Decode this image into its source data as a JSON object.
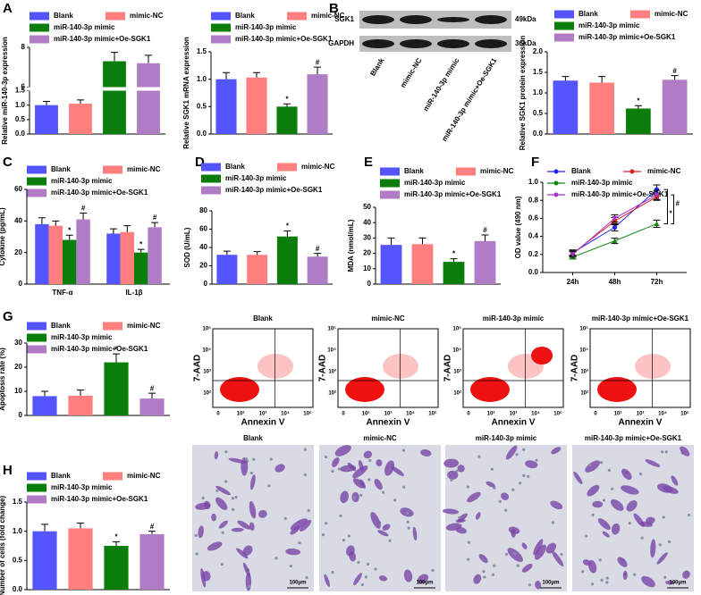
{
  "chart_data": [
    {
      "type": "bar",
      "panel": "A",
      "y_label": "Relative miR-140-3p expression",
      "ylim": [
        0,
        8
      ],
      "ybreak": [
        1.5,
        6
      ],
      "yticks": [
        {
          "value": 0,
          "label": "0.0"
        },
        0.5,
        {
          "value": 1,
          "label": "1.0"
        },
        1.5,
        6,
        8
      ],
      "series": [
        {
          "name": "Blank",
          "color": "#5555ff",
          "values": [
            1.0
          ],
          "errors": [
            0.13
          ]
        },
        {
          "name": "mimic-NC",
          "color": "#ff7f7f",
          "values": [
            1.05
          ],
          "errors": [
            0.13
          ]
        },
        {
          "name": "miR-140-3p mimic",
          "color": "#0b7d0b",
          "values": [
            7.3
          ],
          "errors": [
            0.45
          ]
        },
        {
          "name": "miR-140-3p mimic+Oe-SGK1",
          "color": "#b07cc6",
          "values": [
            7.2
          ],
          "errors": [
            0.4
          ]
        }
      ]
    },
    {
      "type": "bar",
      "y_label": "Relative SGK1 mRNA expression",
      "ylim": [
        0,
        1.5
      ],
      "yticks": [
        {
          "value": 0,
          "label": "0.0"
        },
        0.5,
        {
          "value": 1,
          "label": "1.0"
        },
        1.5
      ],
      "series": [
        {
          "name": "Blank",
          "color": "#5555ff",
          "values": [
            1.0
          ],
          "errors": [
            0.12
          ]
        },
        {
          "name": "mimic-NC",
          "color": "#ff7f7f",
          "values": [
            1.03
          ],
          "errors": [
            0.09
          ]
        },
        {
          "name": "miR-140-3p mimic",
          "color": "#0b7d0b",
          "values": [
            0.5
          ],
          "errors": [
            0.05
          ],
          "annotations": [
            "*"
          ]
        },
        {
          "name": "miR-140-3p mimic+Oe-SGK1",
          "color": "#b07cc6",
          "values": [
            1.09
          ],
          "errors": [
            0.13
          ],
          "annotations": [
            "#"
          ]
        }
      ]
    },
    {
      "type": "bar",
      "y_label": "Relative SGK1 protein expression",
      "ylim": [
        0,
        2
      ],
      "yticks": [
        {
          "value": 0,
          "label": "0.0"
        },
        0.5,
        {
          "value": 1,
          "label": "1.0"
        },
        1.5,
        {
          "value": 2,
          "label": "2.0"
        }
      ],
      "series": [
        {
          "name": "Blank",
          "color": "#5555ff",
          "values": [
            1.3
          ],
          "errors": [
            0.1
          ]
        },
        {
          "name": "mimic-NC",
          "color": "#ff7f7f",
          "values": [
            1.25
          ],
          "errors": [
            0.15
          ]
        },
        {
          "name": "miR-140-3p mimic",
          "color": "#0b7d0b",
          "values": [
            0.62
          ],
          "errors": [
            0.07
          ],
          "annotations": [
            "*"
          ]
        },
        {
          "name": "miR-140-3p mimic+Oe-SGK1",
          "color": "#b07cc6",
          "values": [
            1.32
          ],
          "errors": [
            0.1
          ],
          "annotations": [
            "#"
          ]
        }
      ]
    },
    {
      "type": "bar",
      "panel": "C",
      "y_label": "Cytokine (pg/mL)",
      "ylim": [
        0,
        60
      ],
      "yticks": [
        0,
        20,
        40,
        60
      ],
      "categories": [
        "TNF-α",
        "IL-1β"
      ],
      "series": [
        {
          "name": "Blank",
          "color": "#5555ff",
          "values": [
            38,
            32
          ],
          "errors": [
            4,
            3
          ]
        },
        {
          "name": "mimic-NC",
          "color": "#ff7f7f",
          "values": [
            37,
            33
          ],
          "errors": [
            3,
            4
          ]
        },
        {
          "name": "miR-140-3p mimic",
          "color": "#0b7d0b",
          "values": [
            28,
            20
          ],
          "errors": [
            3,
            2
          ],
          "annotations": [
            "*",
            "*"
          ]
        },
        {
          "name": "miR-140-3p mimic+Oe-SGK1",
          "color": "#b07cc6",
          "values": [
            41,
            36
          ],
          "errors": [
            4,
            3
          ],
          "annotations": [
            "#",
            "#"
          ]
        }
      ]
    },
    {
      "type": "bar",
      "panel": "D",
      "y_label": "SOD (U/mL)",
      "ylim": [
        0,
        80
      ],
      "yticks": [
        0,
        20,
        40,
        60,
        80
      ],
      "series": [
        {
          "name": "Blank",
          "color": "#5555ff",
          "values": [
            32
          ],
          "errors": [
            4
          ]
        },
        {
          "name": "mimic-NC",
          "color": "#ff7f7f",
          "values": [
            32
          ],
          "errors": [
            3.5
          ]
        },
        {
          "name": "miR-140-3p mimic",
          "color": "#0b7d0b",
          "values": [
            52
          ],
          "errors": [
            6
          ],
          "annotations": [
            "*"
          ]
        },
        {
          "name": "miR-140-3p mimic+Oe-SGK1",
          "color": "#b07cc6",
          "values": [
            30
          ],
          "errors": [
            3.5
          ],
          "annotations": [
            "#"
          ]
        }
      ]
    },
    {
      "type": "bar",
      "panel": "E",
      "y_label": "MDA (nmol/mL)",
      "ylim": [
        0,
        50
      ],
      "yticks": [
        0,
        10,
        20,
        30,
        40,
        50
      ],
      "series": [
        {
          "name": "Blank",
          "color": "#5555ff",
          "values": [
            25.5
          ],
          "errors": [
            4.5
          ]
        },
        {
          "name": "mimic-NC",
          "color": "#ff7f7f",
          "values": [
            26
          ],
          "errors": [
            4
          ]
        },
        {
          "name": "miR-140-3p mimic",
          "color": "#0b7d0b",
          "values": [
            14.5
          ],
          "errors": [
            2
          ],
          "annotations": [
            "*"
          ]
        },
        {
          "name": "miR-140-3p mimic+Oe-SGK1",
          "color": "#b07cc6",
          "values": [
            28
          ],
          "errors": [
            4
          ],
          "annotations": [
            "#"
          ]
        }
      ]
    },
    {
      "type": "line",
      "panel": "F",
      "y_label": "OD value (490 nm)",
      "ylim": [
        0,
        1
      ],
      "yticks": [
        {
          "value": 0,
          "label": "0.0"
        },
        0.2,
        0.4,
        0.6,
        0.8,
        {
          "value": 1,
          "label": "1.0"
        }
      ],
      "categories": [
        "24h",
        "48h",
        "72h"
      ],
      "annotations": [
        "*",
        "#"
      ],
      "series": [
        {
          "name": "Blank",
          "color": "#2222ee",
          "marker": "circle",
          "values": [
            0.22,
            0.5,
            0.92
          ],
          "errors": [
            0.03,
            0.04,
            0.05
          ]
        },
        {
          "name": "mimic-NC",
          "color": "#dd2222",
          "marker": "square",
          "values": [
            0.21,
            0.57,
            0.84
          ],
          "errors": [
            0.03,
            0.04,
            0.04
          ]
        },
        {
          "name": "miR-140-3p mimic",
          "color": "#118811",
          "marker": "triangle",
          "values": [
            0.17,
            0.35,
            0.54
          ],
          "errors": [
            0.02,
            0.03,
            0.04
          ]
        },
        {
          "name": "miR-140-3p mimic+Oe-SGK1",
          "color": "#aa33cc",
          "marker": "down",
          "values": [
            0.2,
            0.6,
            0.86
          ],
          "errors": [
            0.03,
            0.04,
            0.05
          ]
        }
      ]
    },
    {
      "type": "bar",
      "panel": "G",
      "y_label": "Apoptosis rate (%)",
      "ylim": [
        0,
        30
      ],
      "yticks": [
        0,
        10,
        20,
        30
      ],
      "series": [
        {
          "name": "Blank",
          "color": "#5555ff",
          "values": [
            8
          ],
          "errors": [
            2
          ]
        },
        {
          "name": "mimic-NC",
          "color": "#ff7f7f",
          "values": [
            8.2
          ],
          "errors": [
            2.3
          ]
        },
        {
          "name": "miR-140-3p mimic",
          "color": "#0b7d0b",
          "values": [
            22
          ],
          "errors": [
            3.5
          ],
          "annotations": [
            "*"
          ]
        },
        {
          "name": "miR-140-3p mimic+Oe-SGK1",
          "color": "#b07cc6",
          "values": [
            7
          ],
          "errors": [
            2.2
          ],
          "annotations": [
            "#"
          ]
        }
      ]
    },
    {
      "type": "bar",
      "panel": "H",
      "y_label": "Number of cells (fold change)",
      "ylim": [
        0,
        1.5
      ],
      "yticks": [
        {
          "value": 0,
          "label": "0.0"
        },
        0.5,
        {
          "value": 1,
          "label": "1.0"
        },
        1.5
      ],
      "series": [
        {
          "name": "Blank",
          "color": "#5555ff",
          "values": [
            1.0
          ],
          "errors": [
            0.12
          ]
        },
        {
          "name": "mimic-NC",
          "color": "#ff7f7f",
          "values": [
            1.05
          ],
          "errors": [
            0.09
          ]
        },
        {
          "name": "miR-140-3p mimic",
          "color": "#0b7d0b",
          "values": [
            0.75
          ],
          "errors": [
            0.07
          ],
          "annotations": [
            "*"
          ]
        },
        {
          "name": "miR-140-3p mimic+Oe-SGK1",
          "color": "#b07cc6",
          "values": [
            0.95
          ],
          "errors": [
            0.05
          ],
          "annotations": [
            "#"
          ]
        }
      ]
    }
  ],
  "western_blot": {
    "panel": "B",
    "bands": [
      "SGK1",
      "GAPDH"
    ],
    "sizes": [
      "49kDa",
      "36kDa"
    ],
    "lanes": [
      "Blank",
      "mimic-NC",
      "miR-140-3p mimic",
      "miR-140-3p mimic+Oe-SGK1"
    ]
  },
  "flow_plots": {
    "titles": [
      "Blank",
      "mimic-NC",
      "miR-140-3p mimic",
      "miR-140-3p mimic+Oe-SGK1"
    ],
    "x_label": "Annexin V",
    "y_label": "7-AAD",
    "x_ticks": [
      "0",
      "10²",
      "10³",
      "10⁴",
      "10⁵"
    ],
    "y_ticks": [
      "10²",
      "10³",
      "10⁴",
      "10⁵"
    ]
  },
  "micrographs": {
    "titles": [
      "Blank",
      "mimic-NC",
      "miR-140-3p mimic",
      "miR-140-3p mimic+Oe-SGK1"
    ],
    "scale_bar": "100μm"
  }
}
